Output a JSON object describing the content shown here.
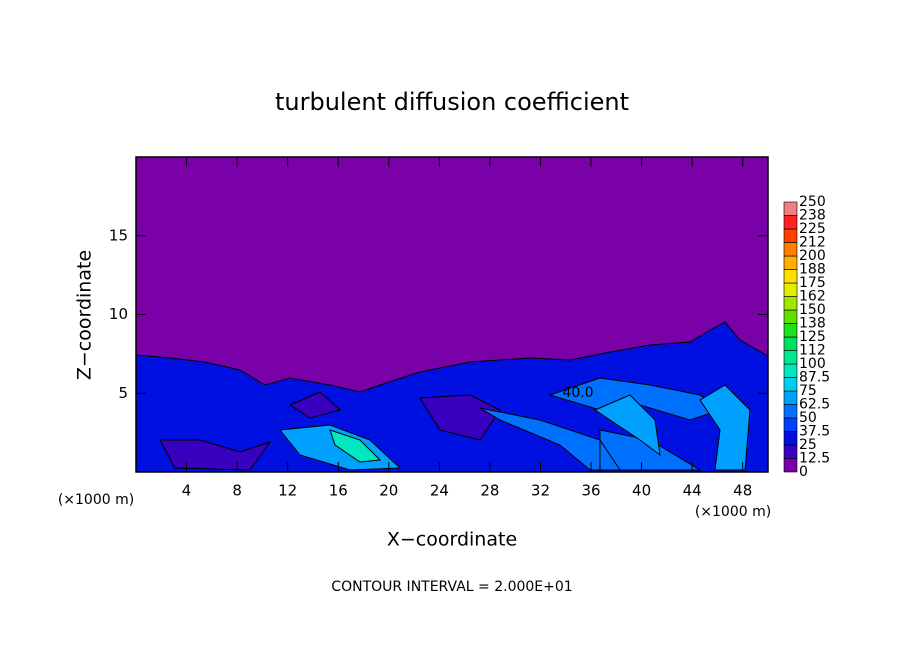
{
  "chart_data": {
    "type": "contour",
    "title": "turbulent diffusion coefficient",
    "xlabel": "X−coordinate",
    "ylabel": "Z−coordinate",
    "x_unit": "(×1000 m)",
    "footer": "CONTOUR INTERVAL = 2.000E+01",
    "contour_label": "40.0",
    "xlim": [
      0,
      50
    ],
    "xticks": [
      4,
      8,
      12,
      16,
      20,
      24,
      28,
      32,
      36,
      40,
      44,
      48
    ],
    "ylim": [
      0,
      20
    ],
    "yticks": [
      5,
      10,
      15
    ],
    "colorbar": {
      "lim": [
        0,
        250
      ],
      "ticks": [
        0,
        12.5,
        25,
        37.5,
        50,
        62.5,
        75,
        87.5,
        100,
        {
          "value": 112.5,
          "label": "112"
        },
        125,
        {
          "value": 137.5,
          "label": "138"
        },
        150,
        {
          "value": 162.5,
          "label": "162"
        },
        175,
        {
          "value": 187.5,
          "label": "188"
        },
        200,
        {
          "value": 212.5,
          "label": "212"
        },
        225,
        {
          "value": 237.5,
          "label": "238"
        },
        250
      ],
      "colors": [
        "#7a00a8",
        "#3a00c0",
        "#0010e0",
        "#0040ff",
        "#0070ff",
        "#00a0ff",
        "#00d0f0",
        "#00e8c0",
        "#00e890",
        "#00e060",
        "#20e020",
        "#60e000",
        "#a0e800",
        "#e0f000",
        "#ffe000",
        "#ffb000",
        "#ff8000",
        "#ff4000",
        "#ff2020",
        "#f08080"
      ]
    }
  }
}
